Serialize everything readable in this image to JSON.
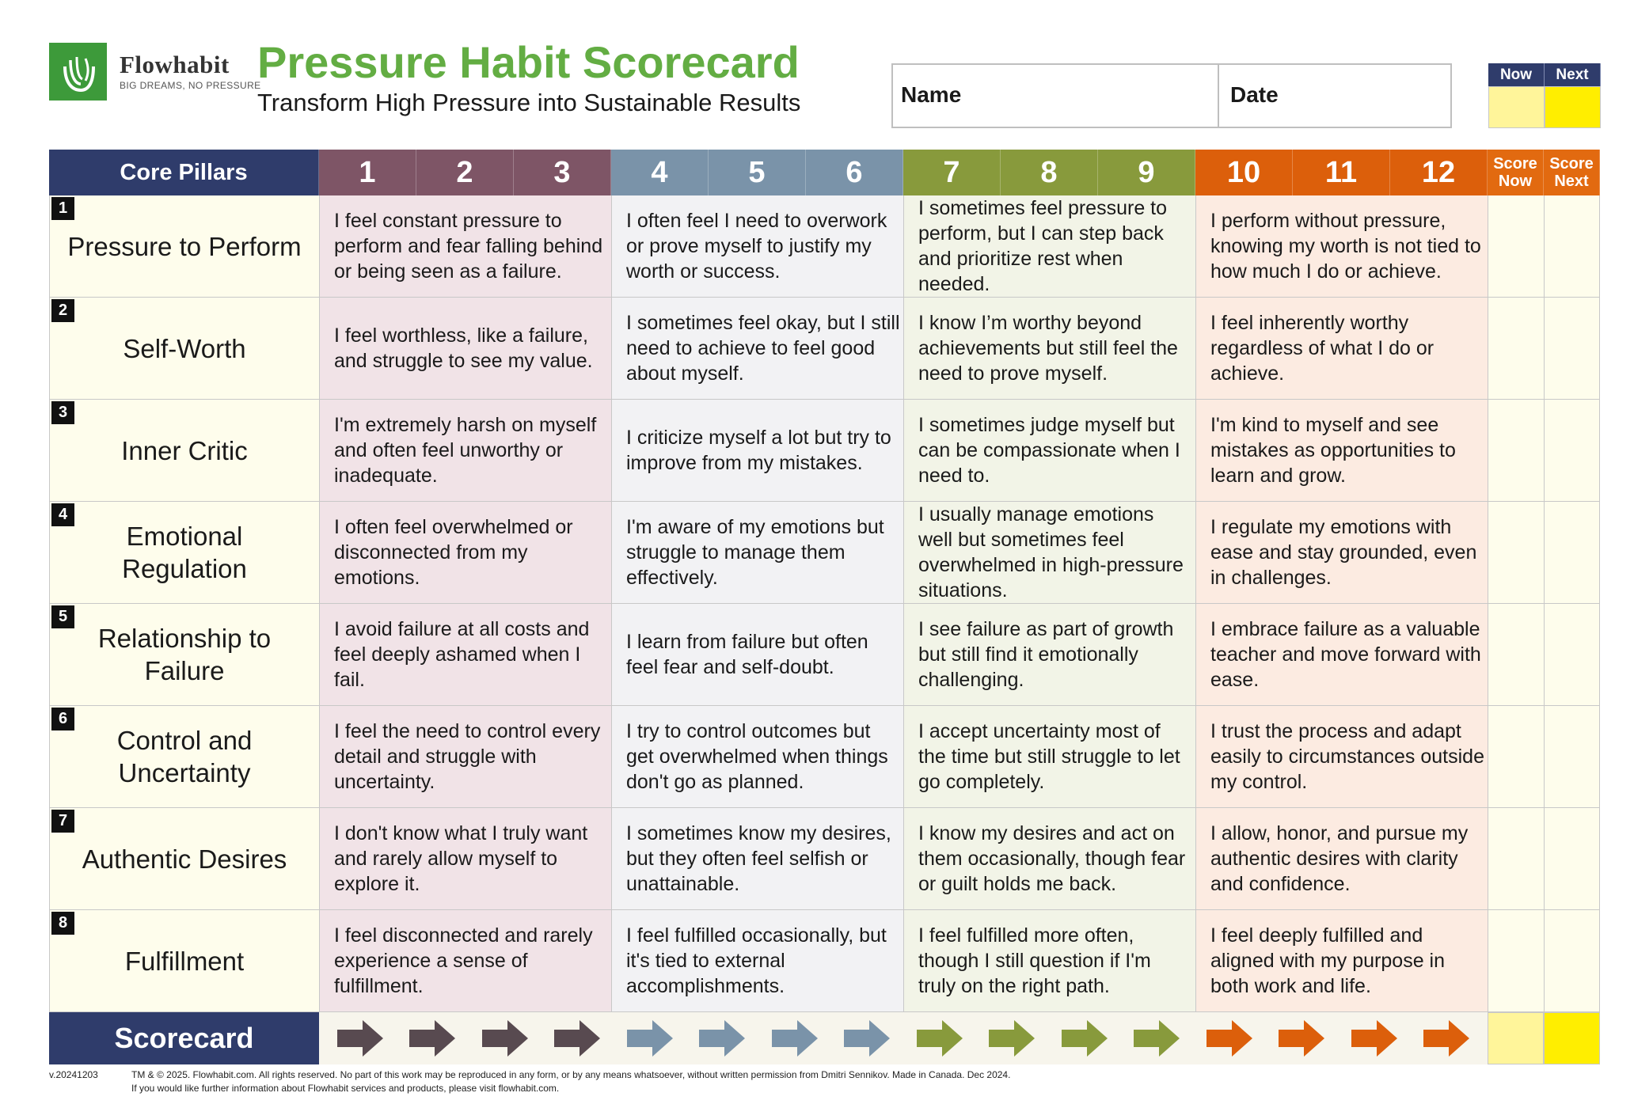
{
  "brand": {
    "name": "Flowhabit",
    "tagline": "BIG DREAMS, NO PRESSURE",
    "logo_icon": "flowhabit-leaf-logo"
  },
  "header": {
    "title": "Pressure Habit Scorecard",
    "subtitle": "Transform High Pressure into Sustainable Results",
    "name_label": "Name",
    "date_label": "Date",
    "now_label": "Now",
    "next_label": "Next"
  },
  "table": {
    "pillars_header": "Core Pillars",
    "score_now_header": [
      "Score",
      "Now"
    ],
    "score_next_header": [
      "Score",
      "Next"
    ],
    "levels": [
      "1",
      "2",
      "3",
      "4",
      "5",
      "6",
      "7",
      "8",
      "9",
      "10",
      "11",
      "12"
    ],
    "band_colors": [
      "#7e5566",
      "#7a93a9",
      "#889a3c",
      "#dc5f0b"
    ],
    "rows": [
      {
        "num": "1",
        "pillar": "Pressure to Perform",
        "descriptions": [
          "I feel constant pressure to perform and fear falling behind or being seen as a failure.",
          "I often feel I need to overwork or prove myself to justify my worth or success.",
          "I sometimes feel pressure to perform, but I can step back and prioritize rest when needed.",
          "I perform without pressure, knowing my worth is not tied to how much I do or achieve."
        ]
      },
      {
        "num": "2",
        "pillar": "Self-Worth",
        "descriptions": [
          "I feel worthless, like a failure, and struggle to see my value.",
          "I sometimes feel okay, but I still need to achieve to feel good about myself.",
          "I know I’m worthy beyond achievements but still feel the need to prove myself.",
          "I feel inherently worthy regardless of what I do or achieve."
        ]
      },
      {
        "num": "3",
        "pillar": "Inner Critic",
        "descriptions": [
          "I'm extremely harsh on myself and often feel unworthy or inadequate.",
          "I criticize myself a lot but try to improve from my mistakes.",
          "I sometimes judge myself but can be compassionate when I need to.",
          "I'm kind to myself and see mistakes as opportunities to learn and grow."
        ]
      },
      {
        "num": "4",
        "pillar": "Emotional Regulation",
        "descriptions": [
          "I often feel overwhelmed or disconnected from my emotions.",
          "I'm aware of my emotions but struggle to manage them effectively.",
          "I usually manage emotions well but sometimes feel overwhelmed in high-pressure situations.",
          "I regulate my emotions with ease and stay grounded, even in challenges."
        ]
      },
      {
        "num": "5",
        "pillar": "Relationship to Failure",
        "descriptions": [
          "I avoid failure at all costs and feel deeply ashamed when I fail.",
          "I learn from failure but often feel fear and self-doubt.",
          "I see failure as part of growth but still find it emotionally challenging.",
          "I embrace failure as a valuable teacher and move forward with ease."
        ]
      },
      {
        "num": "6",
        "pillar": "Control and Uncertainty",
        "descriptions": [
          "I feel the need to control every detail and struggle with uncertainty.",
          "I try to control outcomes but get overwhelmed when things don't go as planned.",
          "I accept uncertainty most of the time but still struggle to let go completely.",
          "I trust the process and adapt easily to circumstances outside my control."
        ]
      },
      {
        "num": "7",
        "pillar": "Authentic Desires",
        "descriptions": [
          "I don't know what I truly want and rarely allow myself to explore it.",
          "I sometimes know my desires, but they often feel selfish or unattainable.",
          "I know my desires and act on them occasionally, though fear or guilt holds me back.",
          "I allow, honor, and pursue my authentic desires with clarity and confidence."
        ]
      },
      {
        "num": "8",
        "pillar": "Fulfillment",
        "descriptions": [
          "I feel disconnected and rarely experience a sense of fulfillment.",
          "I feel fulfilled occasionally, but it's tied to external accomplishments.",
          "I feel fulfilled more often, though I still question if I'm truly on the right path.",
          "I feel deeply fulfilled and aligned with my purpose in both work and life."
        ]
      }
    ],
    "scorecard_label": "Scorecard",
    "arrow_icon": "right-arrow-icon",
    "arrow_colors": [
      "#584a50",
      "#584a50",
      "#584a50",
      "#584a50",
      "#7a93a9",
      "#7a93a9",
      "#7a93a9",
      "#7a93a9",
      "#889a3c",
      "#889a3c",
      "#889a3c",
      "#889a3c",
      "#dc5f0b",
      "#dc5f0b",
      "#dc5f0b",
      "#dc5f0b"
    ]
  },
  "footer": {
    "version": "v.20241203",
    "copyright_line1": "TM & © 2025. Flowhabit.com. All rights reserved. No part of this work may be reproduced in any form, or by any means whatsoever, without written permission from Dmitri Sennikov. Made in Canada. Dec 2024.",
    "copyright_line2": "If you would like further information about Flowhabit services and products, please visit flowhabit.com."
  }
}
